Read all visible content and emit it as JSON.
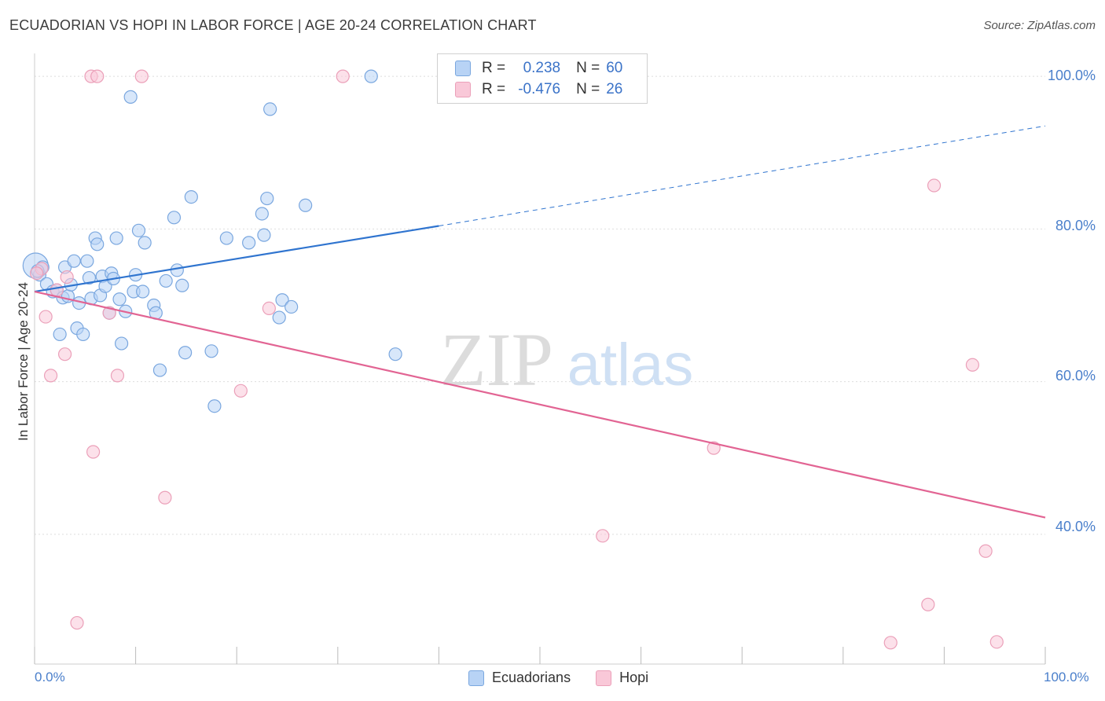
{
  "header": {
    "title": "ECUADORIAN VS HOPI IN LABOR FORCE | AGE 20-24 CORRELATION CHART",
    "source": "Source: ZipAtlas.com"
  },
  "watermark": {
    "zip": "ZIP",
    "atlas": "atlas"
  },
  "legend_stats": {
    "r_label": "R =",
    "n_label": "N =",
    "rows": [
      {
        "r": "0.238",
        "n": "60"
      },
      {
        "r": "-0.476",
        "n": "26"
      }
    ]
  },
  "colors": {
    "ecuadorians_fill": "#b8d3f5",
    "ecuadorians_stroke": "#7aa7df",
    "ecuadorians_line": "#2f74cf",
    "hopi_fill": "#f9c8d8",
    "hopi_stroke": "#eba0b9",
    "hopi_line": "#e26493",
    "axis_text": "#4a7fcb",
    "grid": "#dddddd"
  },
  "chart_data": {
    "type": "scatter",
    "title": "ECUADORIAN VS HOPI IN LABOR FORCE | AGE 20-24 CORRELATION CHART",
    "xlabel": "",
    "ylabel": "In Labor Force | Age 20-24",
    "xlim": [
      0,
      100
    ],
    "ylim": [
      23,
      103
    ],
    "x_tick_labels": [
      "0.0%",
      "100.0%"
    ],
    "y_ticks": [
      40,
      60,
      80,
      100
    ],
    "y_tick_labels": [
      "40.0%",
      "60.0%",
      "80.0%",
      "100.0%"
    ],
    "grid": true,
    "legend_position": "bottom",
    "series": [
      {
        "name": "Ecuadorians",
        "r": 0.238,
        "n": 60,
        "trend": {
          "x0": 0,
          "y0": 71.8,
          "x1": 40,
          "y1": 80.4,
          "dashed_to_x": 100,
          "dashed_to_y": 93.5
        },
        "points": [
          [
            0.1,
            75.2
          ],
          [
            0.5,
            74.0
          ],
          [
            0.8,
            75.0
          ],
          [
            1.2,
            72.8
          ],
          [
            1.8,
            71.8
          ],
          [
            2.2,
            72.0
          ],
          [
            2.5,
            66.2
          ],
          [
            2.8,
            71.0
          ],
          [
            3.0,
            75.0
          ],
          [
            3.3,
            71.2
          ],
          [
            3.6,
            72.7
          ],
          [
            3.9,
            75.8
          ],
          [
            4.2,
            67.0
          ],
          [
            4.4,
            70.3
          ],
          [
            4.8,
            66.2
          ],
          [
            5.2,
            75.8
          ],
          [
            5.4,
            73.6
          ],
          [
            5.6,
            70.9
          ],
          [
            6.0,
            78.8
          ],
          [
            6.2,
            78.0
          ],
          [
            6.5,
            71.3
          ],
          [
            6.7,
            73.8
          ],
          [
            7.0,
            72.5
          ],
          [
            7.4,
            69.0
          ],
          [
            7.6,
            74.2
          ],
          [
            7.8,
            73.5
          ],
          [
            8.1,
            78.8
          ],
          [
            8.4,
            70.8
          ],
          [
            8.6,
            65.0
          ],
          [
            9.0,
            69.2
          ],
          [
            9.5,
            97.3
          ],
          [
            9.8,
            71.8
          ],
          [
            10.0,
            74.0
          ],
          [
            10.3,
            79.8
          ],
          [
            10.7,
            71.8
          ],
          [
            10.9,
            78.2
          ],
          [
            11.8,
            70.0
          ],
          [
            12.0,
            69.0
          ],
          [
            12.4,
            61.5
          ],
          [
            13.0,
            73.2
          ],
          [
            13.8,
            81.5
          ],
          [
            14.1,
            74.6
          ],
          [
            14.6,
            72.6
          ],
          [
            14.9,
            63.8
          ],
          [
            15.5,
            84.2
          ],
          [
            17.5,
            64.0
          ],
          [
            17.8,
            56.8
          ],
          [
            19.0,
            78.8
          ],
          [
            21.2,
            78.2
          ],
          [
            22.5,
            82.0
          ],
          [
            22.7,
            79.2
          ],
          [
            23.0,
            84.0
          ],
          [
            23.3,
            95.7
          ],
          [
            24.2,
            68.4
          ],
          [
            24.5,
            70.7
          ],
          [
            25.4,
            69.8
          ],
          [
            26.8,
            83.1
          ],
          [
            33.3,
            100.0
          ],
          [
            35.7,
            63.6
          ],
          [
            0.3,
            74.5
          ]
        ]
      },
      {
        "name": "Hopi",
        "r": -0.476,
        "n": 26,
        "trend": {
          "x0": 0,
          "y0": 71.8,
          "x1": 100,
          "y1": 42.2
        },
        "points": [
          [
            0.7,
            74.8
          ],
          [
            1.1,
            68.5
          ],
          [
            1.6,
            60.8
          ],
          [
            2.2,
            72.0
          ],
          [
            3.0,
            63.6
          ],
          [
            3.2,
            73.7
          ],
          [
            4.2,
            28.4
          ],
          [
            5.6,
            100.0
          ],
          [
            5.8,
            50.8
          ],
          [
            6.2,
            100.0
          ],
          [
            7.4,
            69.0
          ],
          [
            8.2,
            60.8
          ],
          [
            10.6,
            100.0
          ],
          [
            12.9,
            44.8
          ],
          [
            20.4,
            58.8
          ],
          [
            23.2,
            69.6
          ],
          [
            30.5,
            100.0
          ],
          [
            67.2,
            51.3
          ],
          [
            56.2,
            39.8
          ],
          [
            84.7,
            25.8
          ],
          [
            88.4,
            30.8
          ],
          [
            89.0,
            85.7
          ],
          [
            92.8,
            62.2
          ],
          [
            94.1,
            37.8
          ],
          [
            95.2,
            25.9
          ],
          [
            0.2,
            74.2
          ]
        ]
      }
    ]
  },
  "bottom_legend": {
    "items": [
      "Ecuadorians",
      "Hopi"
    ]
  }
}
